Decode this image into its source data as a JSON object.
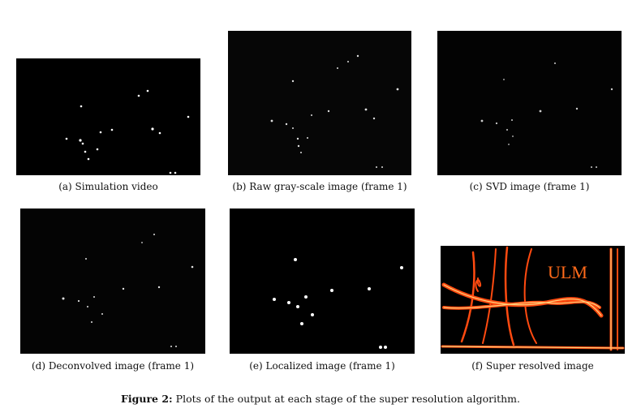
{
  "panels": [
    {
      "caption": "(a) Simulation video"
    },
    {
      "caption": "(b) Raw gray-scale image (frame 1)"
    },
    {
      "caption": "(c) SVD image (frame 1)"
    },
    {
      "caption": "(d) Deconvolved image (frame 1)"
    },
    {
      "caption": "(e) Localized image (frame 1)"
    },
    {
      "caption": "(f) Super resolved image"
    }
  ],
  "super_resolved_text": "ULM",
  "figure": {
    "label": "Figure 2:",
    "caption": "Plots of the output at each stage of the super resolution algorithm."
  },
  "colors": {
    "background": "#000000",
    "vessel": "#ff5a1a",
    "vessel_core": "#ffd07a",
    "dots": "#ffffff"
  }
}
